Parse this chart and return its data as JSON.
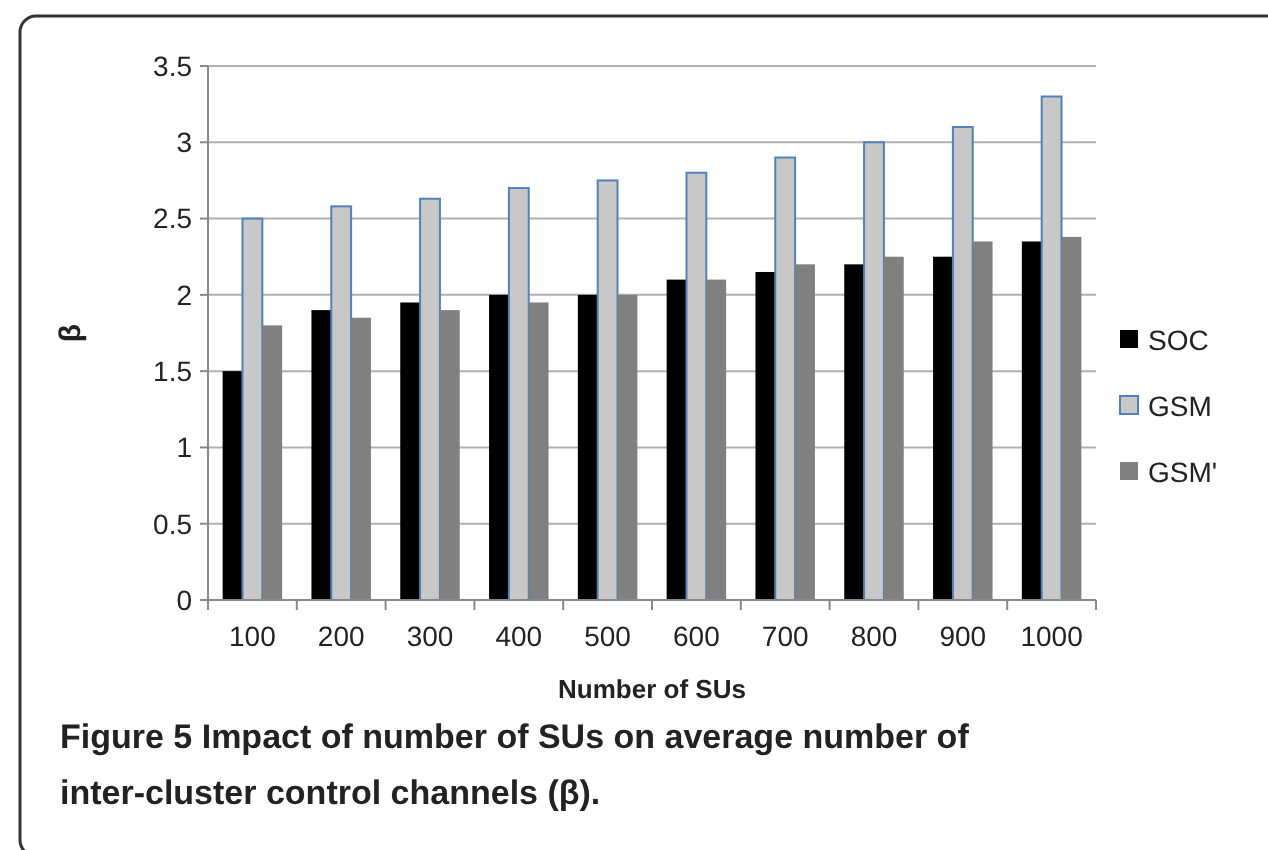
{
  "chart_data": {
    "type": "bar",
    "xlabel": "Number of SUs",
    "ylabel": "β",
    "categories": [
      "100",
      "200",
      "300",
      "400",
      "500",
      "600",
      "700",
      "800",
      "900",
      "1000"
    ],
    "series": [
      {
        "name": "SOC",
        "color": "#000000",
        "values": [
          1.5,
          1.9,
          1.95,
          2,
          2,
          2.1,
          2.15,
          2.2,
          2.25,
          2.35
        ]
      },
      {
        "name": "GSM",
        "color": "#c8c8c8",
        "values": [
          2.5,
          2.58,
          2.63,
          2.7,
          2.75,
          2.8,
          2.9,
          3,
          3.1,
          3.3
        ]
      },
      {
        "name": "GSM'",
        "color": "#808080",
        "values": [
          1.8,
          1.85,
          1.9,
          1.95,
          2,
          2.1,
          2.2,
          2.25,
          2.35,
          2.38
        ]
      }
    ],
    "ylim": [
      0,
      3.5
    ],
    "yticks": [
      0,
      0.5,
      1,
      1.5,
      2,
      2.5,
      3,
      3.5
    ],
    "grid": "y",
    "legend": "right",
    "annotations": [
      "Figure 5 Impact of number of SUs on average number of inter-cluster control channels (β)."
    ]
  }
}
